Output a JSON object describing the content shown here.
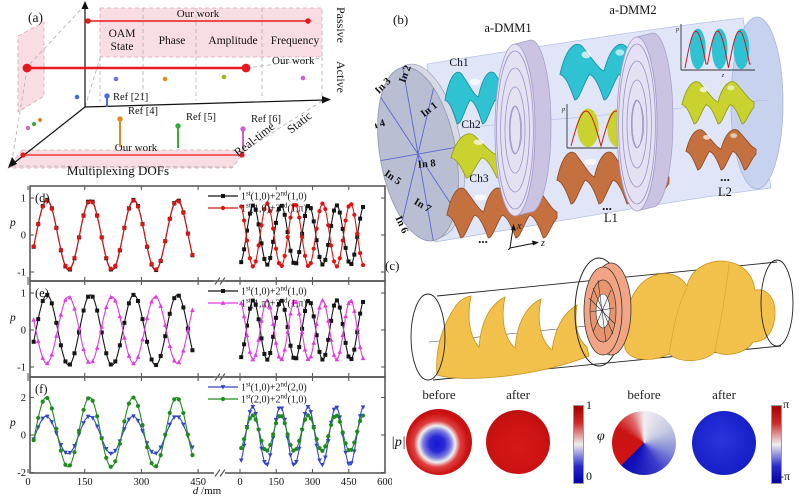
{
  "figure": {
    "panel_a": {
      "tag": "(a)",
      "axis_bottom_label": "Multiplexing DOFs",
      "axis_vertical_top": "Passive",
      "axis_vertical_bottom": "Active",
      "axis_depth_far": "Static",
      "axis_depth_near": "Real-time",
      "our_work": "Our work",
      "accent": "#e8191c",
      "plane_color": "#f8dde2",
      "categories": [
        {
          "label": "OAM",
          "label2": "State",
          "color": "#7373d2"
        },
        {
          "label": "Phase",
          "color": "#e5861f"
        },
        {
          "label": "Amplitude",
          "color": "#9cb41e"
        },
        {
          "label": "Frequency",
          "color": "#d05fd4"
        }
      ],
      "refs": [
        {
          "label": "Ref [21]",
          "color": "#4a6ae0"
        },
        {
          "label": "Ref [4]",
          "color": "#e5861f"
        },
        {
          "label": "Ref [5]",
          "color": "#3aab3a"
        },
        {
          "label": "Ref [6]",
          "color": "#d05fd4"
        }
      ]
    },
    "panel_b": {
      "tag": "(b)",
      "dmm1_label": "a-DMM1",
      "dmm2_label": "a-DMM2",
      "channel_label_color": "#e8191c",
      "channels": [
        {
          "label": "Ch1",
          "color": "#2fc2d2"
        },
        {
          "label": "Ch2",
          "color": "#c9d22e"
        },
        {
          "label": "Ch3",
          "color": "#c4703f"
        }
      ],
      "inputs": [
        "In 1",
        "In 2",
        "In 3",
        "In 4",
        "In 5",
        "In 6",
        "In 7",
        "In 8"
      ],
      "l1_label": "L1",
      "l2_label": "L2",
      "dots": "...",
      "axes": {
        "x": "x",
        "y": "y",
        "z": "z"
      },
      "inset_axis": {
        "y": "p",
        "x": "z"
      }
    },
    "panel_c": {
      "tag": "(c)"
    },
    "field_maps": {
      "amplitude": {
        "symbol": "|p|",
        "before": "before",
        "after": "after",
        "cbar_top": "1",
        "cbar_bottom": "0"
      },
      "phase": {
        "symbol": "φ",
        "before": "before",
        "after": "after",
        "cbar_top": "π",
        "cbar_bottom": "-π"
      }
    }
  },
  "chart_data": [
    {
      "type": "line",
      "panel": "(d)",
      "ylabel": "p",
      "yticks": [
        1,
        0,
        -1
      ],
      "ylim": [
        -1.15,
        1.47
      ],
      "x_break": true,
      "x_left_ticks": [
        0,
        150,
        300,
        450
      ],
      "x_right_ticks": [
        0,
        150,
        300,
        450,
        600
      ],
      "series": [
        {
          "label_parts": [
            "1",
            "st",
            "(1,0)+2",
            "nd",
            "(1,0)"
          ],
          "color": "#151515",
          "marker": "square",
          "left": {
            "amplitude": 0.95,
            "period_mm": 115,
            "peak_mm": 50,
            "offset": 0,
            "range": [
              15,
              435
            ]
          },
          "right": {
            "amplitude": 0.8,
            "period_mm": 115,
            "peak_mm": 55,
            "offset": 0,
            "range": [
              5,
              515
            ]
          }
        },
        {
          "label_parts": [
            "1",
            "st",
            "(1,0)+2",
            "nd",
            "(1,π)"
          ],
          "color": "#e01212",
          "marker": "circle",
          "left": {
            "amplitude": 0.93,
            "period_mm": 115,
            "peak_mm": 50,
            "offset": 0,
            "range": [
              15,
              435
            ]
          },
          "right": {
            "amplitude": 0.85,
            "period_mm": 115,
            "peak_mm": 112,
            "offset": 0,
            "range": [
              5,
              515
            ]
          }
        }
      ]
    },
    {
      "type": "line",
      "panel": "(e)",
      "ylabel": "p",
      "yticks": [
        1,
        0,
        -1
      ],
      "ylim": [
        -1.15,
        1.47
      ],
      "x_break": true,
      "x_left_ticks": [
        0,
        150,
        300,
        450
      ],
      "x_right_ticks": [
        0,
        150,
        300,
        450,
        600
      ],
      "series": [
        {
          "label_parts": [
            "1",
            "st",
            "(1,0)+2",
            "nd",
            "(1,0)"
          ],
          "color": "#151515",
          "marker": "square",
          "left": {
            "amplitude": 0.95,
            "period_mm": 115,
            "peak_mm": 50,
            "offset": 0,
            "range": [
              15,
              435
            ]
          },
          "right": {
            "amplitude": 0.8,
            "period_mm": 115,
            "peak_mm": 55,
            "offset": 0,
            "range": [
              5,
              515
            ]
          }
        },
        {
          "label_parts": [
            "1",
            "st",
            "(1,π)+2",
            "nd",
            "(1,π)"
          ],
          "color": "#e23ae2",
          "marker": "triangle",
          "left": {
            "amplitude": 0.9,
            "period_mm": 115,
            "peak_mm": 107,
            "offset": 0,
            "range": [
              15,
              435
            ]
          },
          "right": {
            "amplitude": 0.8,
            "period_mm": 115,
            "peak_mm": 112,
            "offset": 0,
            "range": [
              5,
              515
            ]
          }
        }
      ]
    },
    {
      "type": "line",
      "panel": "(f)",
      "ylabel": "p",
      "yticks": [
        2,
        0,
        -2
      ],
      "ylim": [
        -2.1,
        3.1
      ],
      "x_break": true,
      "x_left_ticks": [
        0,
        150,
        300,
        450
      ],
      "x_right_ticks": [
        0,
        150,
        300,
        450,
        600
      ],
      "xlabel_italic": "d",
      "xlabel_unit": " /mm",
      "series": [
        {
          "label_parts": [
            "1",
            "st",
            "(1,0)+2",
            "nd",
            "(2,0)"
          ],
          "color": "#3344cc",
          "marker": "triangle-down",
          "left": {
            "amplitude": 1.0,
            "period_mm": 115,
            "peak_mm": 48,
            "offset": 0,
            "range": [
              15,
              435
            ]
          },
          "right": {
            "amplitude": 1.55,
            "period_mm": 115,
            "peak_mm": 52,
            "offset": -0.05,
            "range": [
              5,
              515
            ]
          }
        },
        {
          "label_parts": [
            "1",
            "st",
            "(2,0)+2",
            "nd",
            "(1,0)"
          ],
          "color": "#1f8b1f",
          "marker": "circle",
          "left": {
            "amplitude": 1.85,
            "period_mm": 115,
            "peak_mm": 48,
            "offset": 0.15,
            "range": [
              15,
              435
            ]
          },
          "right": {
            "amplitude": 0.95,
            "period_mm": 115,
            "peak_mm": 52,
            "offset": 0.1,
            "range": [
              5,
              515
            ]
          }
        }
      ]
    }
  ]
}
